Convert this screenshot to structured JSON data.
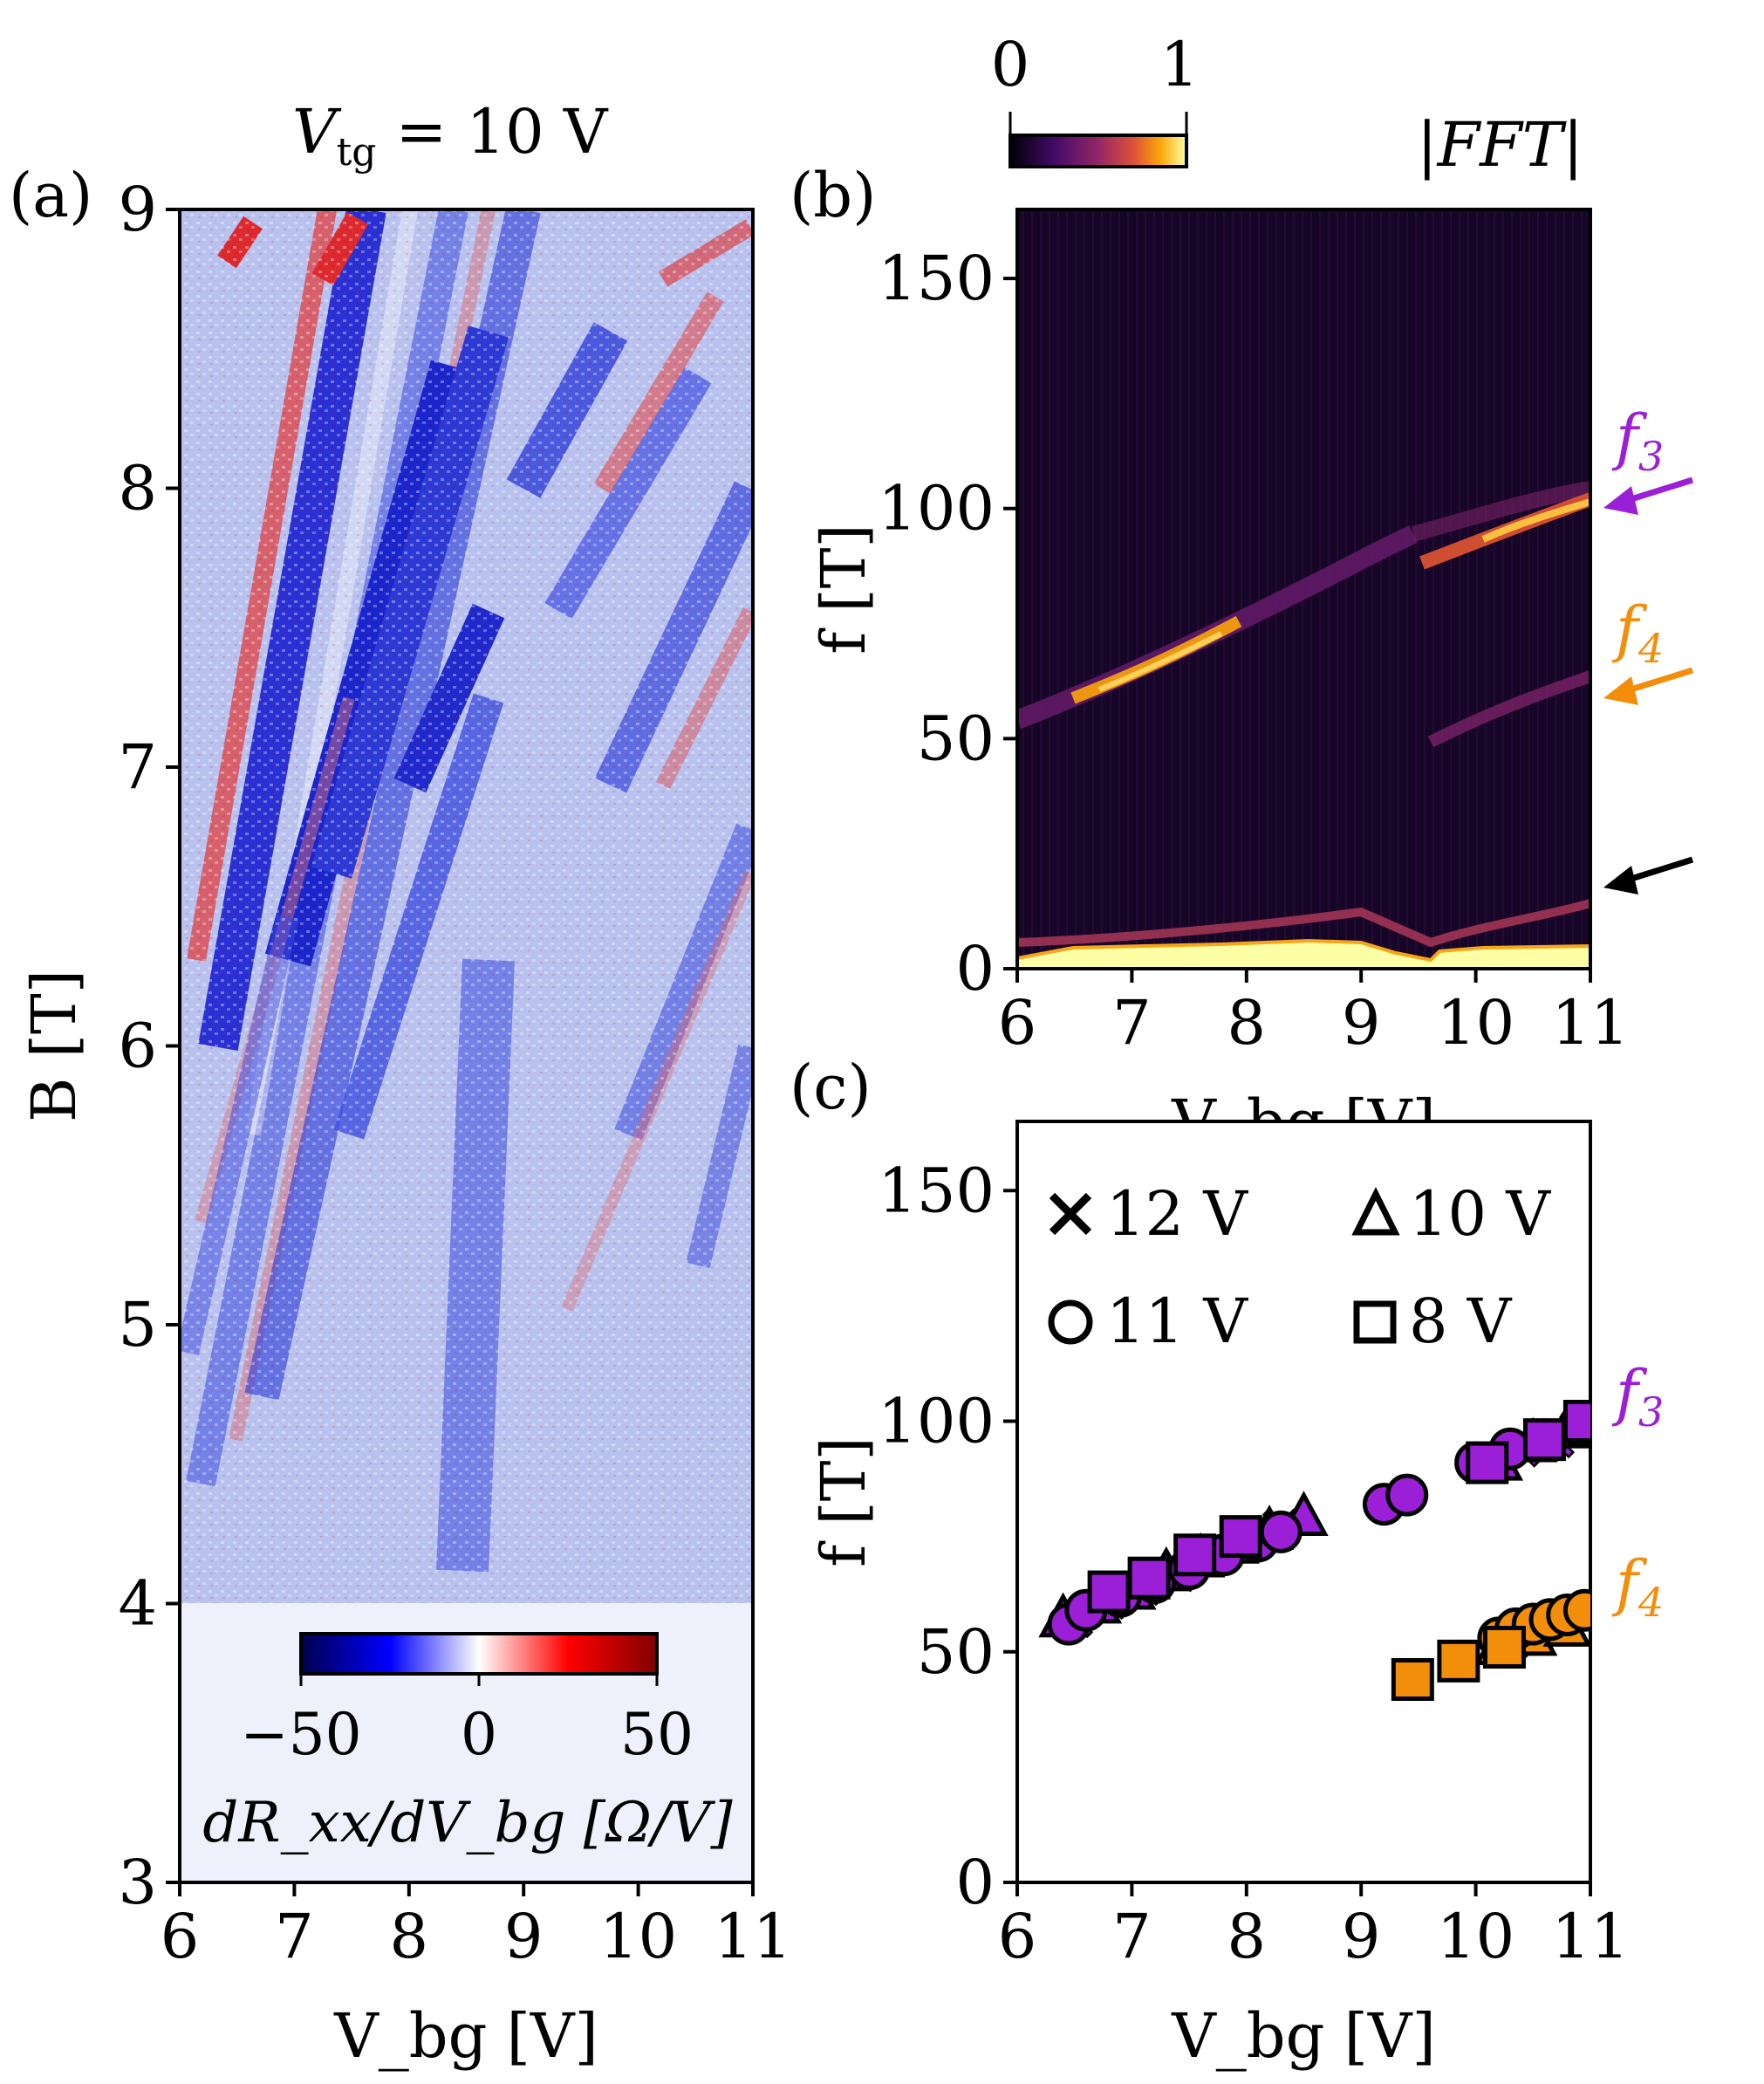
{
  "colors": {
    "blue": "#0000cc",
    "red": "#d40000",
    "purple": "#9b1fd6",
    "orange": "#f28e0a",
    "black": "#000000"
  },
  "panel_a": {
    "label": "(a)",
    "title": "V_tg = 10 V",
    "title_main": "V",
    "title_sub": "tg",
    "title_rest": " = 10 V",
    "cbar_label": "dR_xx/dV_bg [Ω/V]",
    "cbar_ticks": [
      "−50",
      "0",
      "50"
    ]
  },
  "panel_b": {
    "label": "(b)",
    "cbar_title": "|FFT|",
    "cbar_ticks": [
      "0",
      "1"
    ],
    "arrow_labels": [
      {
        "base": "f",
        "sub": "3",
        "color": "purple"
      },
      {
        "base": "f",
        "sub": "4",
        "color": "orange"
      }
    ]
  },
  "panel_c": {
    "label": "(c)",
    "legend": [
      {
        "marker": "x",
        "label": "12 V"
      },
      {
        "marker": "triangle",
        "label": "10 V"
      },
      {
        "marker": "circle",
        "label": "11 V"
      },
      {
        "marker": "square",
        "label": "8 V"
      }
    ],
    "series_labels": [
      {
        "base": "f",
        "sub": "3",
        "color": "purple"
      },
      {
        "base": "f",
        "sub": "4",
        "color": "orange"
      }
    ]
  },
  "chart_data": [
    {
      "id": "a",
      "type": "heatmap",
      "title": "V_tg = 10 V",
      "xlabel": "V_bg [V]",
      "ylabel": "B [T]",
      "xlim": [
        6,
        11
      ],
      "ylim": [
        3,
        9
      ],
      "xticks": [
        "6",
        "7",
        "8",
        "9",
        "10",
        "11"
      ],
      "yticks": [
        "3",
        "4",
        "5",
        "6",
        "7",
        "8",
        "9"
      ],
      "colorbar": {
        "label": "dR_xx/dV_bg [Ω/V]",
        "range": [
          -50,
          50
        ],
        "colormap": "seismic"
      }
    },
    {
      "id": "b",
      "type": "heatmap",
      "xlabel": "V_bg [V]",
      "ylabel": "f [T]",
      "xlim": [
        6,
        11
      ],
      "ylim": [
        0,
        165
      ],
      "xticks": [
        "6",
        "7",
        "8",
        "9",
        "10",
        "11"
      ],
      "yticks": [
        "0",
        "50",
        "100",
        "150"
      ],
      "colorbar": {
        "label": "|FFT|",
        "range": [
          0,
          1
        ],
        "colormap": "inferno"
      },
      "annotations": [
        {
          "text": "f3",
          "f": 101
        },
        {
          "text": "f4",
          "f": 61
        },
        {
          "text": "",
          "f": 20
        }
      ]
    },
    {
      "id": "c",
      "type": "scatter",
      "xlabel": "V_bg [V]",
      "ylabel": "f [T]",
      "xlim": [
        6,
        11
      ],
      "ylim": [
        0,
        165
      ],
      "xticks": [
        "6",
        "7",
        "8",
        "9",
        "10",
        "11"
      ],
      "yticks": [
        "0",
        "50",
        "100",
        "150"
      ],
      "series": [
        {
          "name": "f3 12 V",
          "marker": "x",
          "color": "purple",
          "x": [
            6.5,
            6.8,
            7.1,
            7.4,
            7.7,
            8.0,
            8.3,
            10.1,
            10.4,
            10.7,
            10.9
          ],
          "y": [
            57,
            61,
            64,
            67,
            71,
            74,
            77,
            91,
            94,
            96,
            98
          ]
        },
        {
          "name": "f3 10 V",
          "marker": "triangle",
          "color": "purple",
          "x": [
            6.4,
            6.7,
            7.0,
            7.3,
            7.6,
            7.9,
            8.2,
            8.5,
            10.2,
            10.5,
            10.8
          ],
          "y": [
            57,
            60,
            63,
            67,
            70,
            73,
            76,
            79,
            91,
            95,
            98
          ]
        },
        {
          "name": "f3 11 V",
          "marker": "circle",
          "color": "purple",
          "x": [
            6.45,
            6.6,
            6.9,
            7.2,
            7.5,
            7.8,
            8.1,
            8.3,
            9.2,
            9.4,
            10.0,
            10.3,
            10.6,
            10.9
          ],
          "y": [
            56,
            59,
            62,
            65,
            68,
            71,
            74,
            76,
            82,
            84,
            91,
            94,
            96,
            99
          ]
        },
        {
          "name": "f3 8 V",
          "marker": "square",
          "color": "purple",
          "x": [
            6.8,
            7.15,
            7.55,
            7.95,
            10.1,
            10.6,
            10.95
          ],
          "y": [
            63,
            66,
            71,
            75,
            91,
            96,
            100
          ]
        },
        {
          "name": "f4 12 V",
          "marker": "x",
          "color": "orange",
          "x": [
            10.3,
            10.5,
            10.7,
            10.9
          ],
          "y": [
            52,
            54,
            56,
            58
          ]
        },
        {
          "name": "f4 10 V",
          "marker": "triangle",
          "color": "orange",
          "x": [
            10.2,
            10.5,
            10.8
          ],
          "y": [
            51,
            53,
            55
          ]
        },
        {
          "name": "f4 11 V",
          "marker": "circle",
          "color": "orange",
          "x": [
            10.2,
            10.35,
            10.5,
            10.65,
            10.8,
            10.95
          ],
          "y": [
            53,
            55,
            56,
            57,
            58,
            59
          ]
        },
        {
          "name": "f4 8 V",
          "marker": "square",
          "color": "orange",
          "x": [
            9.45,
            9.85,
            10.25
          ],
          "y": [
            44,
            48,
            51
          ]
        }
      ]
    }
  ]
}
